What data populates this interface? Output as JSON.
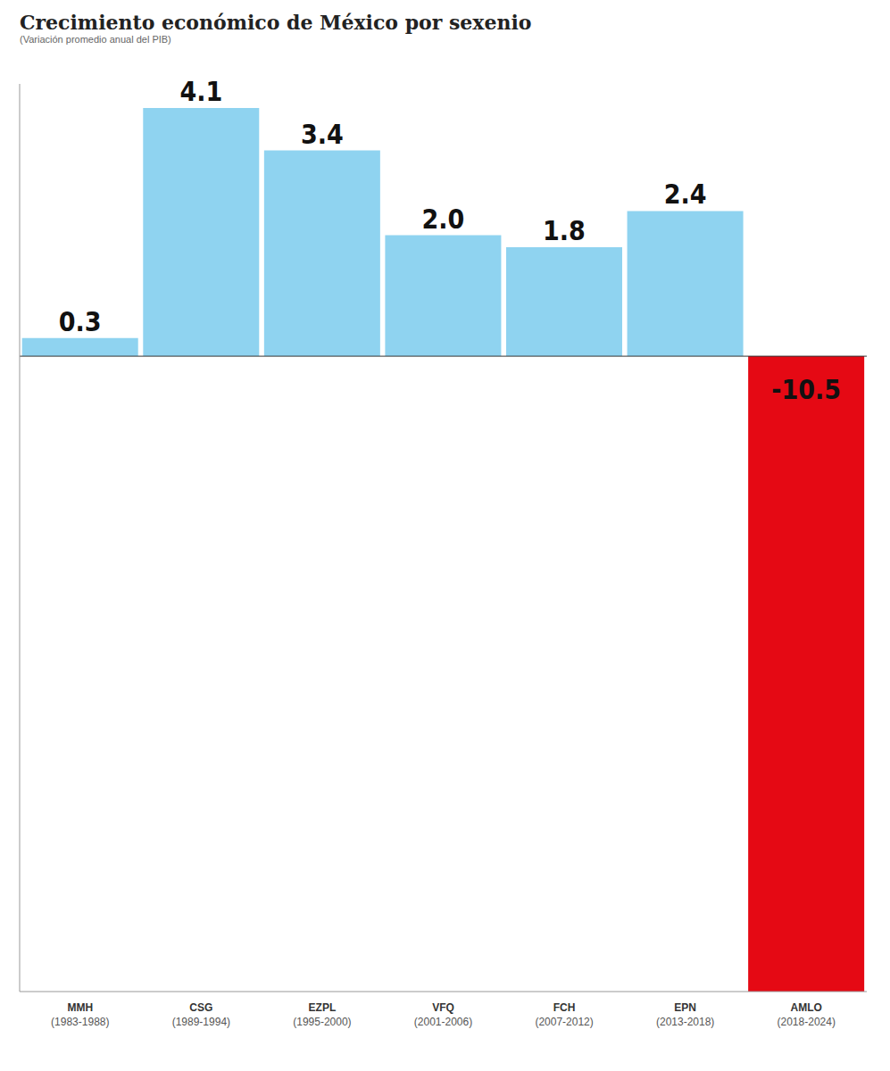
{
  "chart_data": {
    "type": "bar",
    "title": "Crecimiento económico de México por sexenio",
    "subtitle": "(Variación promedio anual del PIB)",
    "categories": [
      "MMH (1983-1988)",
      "CSG (1989-1994)",
      "EZPL (1995-2000)",
      "VFQ (2001-2006)",
      "FCH (2007-2012)",
      "EPN (2013-2018)",
      "AMLO (2018-2024)"
    ],
    "values": [
      0.3,
      4.1,
      3.4,
      2.0,
      1.8,
      2.4,
      -10.5
    ],
    "value_labels": [
      "0.3",
      "4.1",
      "3.4",
      "2.0",
      "1.8",
      "2.4",
      "-10.5"
    ],
    "colors": [
      "#8fd3f0",
      "#8fd3f0",
      "#8fd3f0",
      "#8fd3f0",
      "#8fd3f0",
      "#8fd3f0",
      "#e50914"
    ],
    "ylim": [
      -10.5,
      4.5
    ],
    "grid": false,
    "data_labels": true,
    "tick_labels": "x"
  }
}
